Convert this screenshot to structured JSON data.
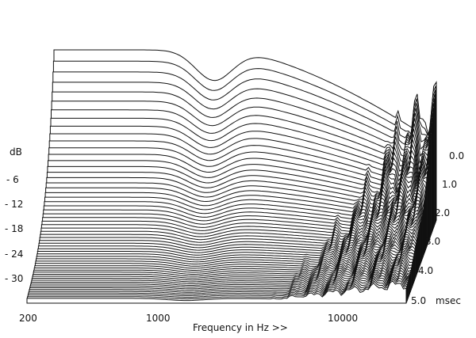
{
  "chart_data": {
    "type": "cumulative-spectral-decay (waterfall)",
    "x_axis": {
      "label": "Frequency in Hz >>",
      "scale": "log",
      "range": [
        200,
        20000
      ],
      "tick_labels": [
        "200",
        "1000",
        "10000"
      ],
      "tick_values": [
        200,
        1000,
        10000
      ]
    },
    "y_axis": {
      "label": "dB",
      "tick_labels": [
        "- 6",
        "- 12",
        "- 18",
        "- 24",
        "- 30"
      ],
      "tick_values": [
        -6,
        -12,
        -18,
        -24,
        -30
      ],
      "range": [
        -36,
        0
      ]
    },
    "z_axis": {
      "unit": "msec",
      "tick_labels": [
        "0.0",
        "1.0",
        "2.0",
        "3.0",
        "4.0",
        "5.0"
      ],
      "tick_values": [
        0.0,
        1.0,
        2.0,
        3.0,
        4.0,
        5.0
      ],
      "range": [
        0.0,
        5.0
      ]
    },
    "slices": 60,
    "grid": false,
    "legend": "none"
  }
}
